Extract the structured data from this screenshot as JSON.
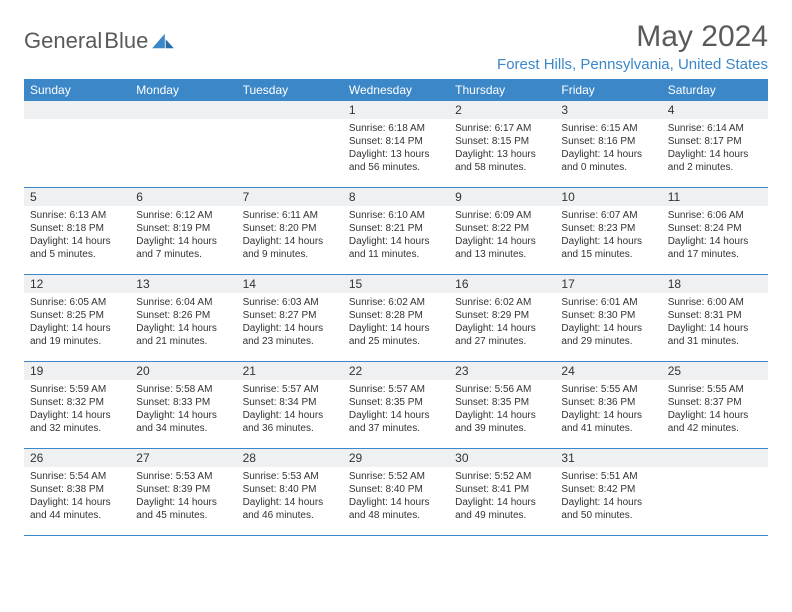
{
  "brand": {
    "part1": "General",
    "part2": "Blue"
  },
  "title": "May 2024",
  "location": "Forest Hills, Pennsylvania, United States",
  "colors": {
    "header_bg": "#3b87c8",
    "header_text": "#ffffff",
    "daynum_bg": "#eef0f2",
    "text": "#333333",
    "brand_gray": "#5a5a5a",
    "brand_blue": "#3b87c8",
    "page_bg": "#ffffff"
  },
  "typography": {
    "title_fontsize": 30,
    "location_fontsize": 15,
    "header_fontsize": 12,
    "daynum_fontsize": 12,
    "body_fontsize": 10
  },
  "day_names": [
    "Sunday",
    "Monday",
    "Tuesday",
    "Wednesday",
    "Thursday",
    "Friday",
    "Saturday"
  ],
  "weeks": [
    [
      {
        "empty": true
      },
      {
        "empty": true
      },
      {
        "empty": true
      },
      {
        "n": "1",
        "sr": "Sunrise: 6:18 AM",
        "ss": "Sunset: 8:14 PM",
        "dl": "Daylight: 13 hours and 56 minutes."
      },
      {
        "n": "2",
        "sr": "Sunrise: 6:17 AM",
        "ss": "Sunset: 8:15 PM",
        "dl": "Daylight: 13 hours and 58 minutes."
      },
      {
        "n": "3",
        "sr": "Sunrise: 6:15 AM",
        "ss": "Sunset: 8:16 PM",
        "dl": "Daylight: 14 hours and 0 minutes."
      },
      {
        "n": "4",
        "sr": "Sunrise: 6:14 AM",
        "ss": "Sunset: 8:17 PM",
        "dl": "Daylight: 14 hours and 2 minutes."
      }
    ],
    [
      {
        "n": "5",
        "sr": "Sunrise: 6:13 AM",
        "ss": "Sunset: 8:18 PM",
        "dl": "Daylight: 14 hours and 5 minutes."
      },
      {
        "n": "6",
        "sr": "Sunrise: 6:12 AM",
        "ss": "Sunset: 8:19 PM",
        "dl": "Daylight: 14 hours and 7 minutes."
      },
      {
        "n": "7",
        "sr": "Sunrise: 6:11 AM",
        "ss": "Sunset: 8:20 PM",
        "dl": "Daylight: 14 hours and 9 minutes."
      },
      {
        "n": "8",
        "sr": "Sunrise: 6:10 AM",
        "ss": "Sunset: 8:21 PM",
        "dl": "Daylight: 14 hours and 11 minutes."
      },
      {
        "n": "9",
        "sr": "Sunrise: 6:09 AM",
        "ss": "Sunset: 8:22 PM",
        "dl": "Daylight: 14 hours and 13 minutes."
      },
      {
        "n": "10",
        "sr": "Sunrise: 6:07 AM",
        "ss": "Sunset: 8:23 PM",
        "dl": "Daylight: 14 hours and 15 minutes."
      },
      {
        "n": "11",
        "sr": "Sunrise: 6:06 AM",
        "ss": "Sunset: 8:24 PM",
        "dl": "Daylight: 14 hours and 17 minutes."
      }
    ],
    [
      {
        "n": "12",
        "sr": "Sunrise: 6:05 AM",
        "ss": "Sunset: 8:25 PM",
        "dl": "Daylight: 14 hours and 19 minutes."
      },
      {
        "n": "13",
        "sr": "Sunrise: 6:04 AM",
        "ss": "Sunset: 8:26 PM",
        "dl": "Daylight: 14 hours and 21 minutes."
      },
      {
        "n": "14",
        "sr": "Sunrise: 6:03 AM",
        "ss": "Sunset: 8:27 PM",
        "dl": "Daylight: 14 hours and 23 minutes."
      },
      {
        "n": "15",
        "sr": "Sunrise: 6:02 AM",
        "ss": "Sunset: 8:28 PM",
        "dl": "Daylight: 14 hours and 25 minutes."
      },
      {
        "n": "16",
        "sr": "Sunrise: 6:02 AM",
        "ss": "Sunset: 8:29 PM",
        "dl": "Daylight: 14 hours and 27 minutes."
      },
      {
        "n": "17",
        "sr": "Sunrise: 6:01 AM",
        "ss": "Sunset: 8:30 PM",
        "dl": "Daylight: 14 hours and 29 minutes."
      },
      {
        "n": "18",
        "sr": "Sunrise: 6:00 AM",
        "ss": "Sunset: 8:31 PM",
        "dl": "Daylight: 14 hours and 31 minutes."
      }
    ],
    [
      {
        "n": "19",
        "sr": "Sunrise: 5:59 AM",
        "ss": "Sunset: 8:32 PM",
        "dl": "Daylight: 14 hours and 32 minutes."
      },
      {
        "n": "20",
        "sr": "Sunrise: 5:58 AM",
        "ss": "Sunset: 8:33 PM",
        "dl": "Daylight: 14 hours and 34 minutes."
      },
      {
        "n": "21",
        "sr": "Sunrise: 5:57 AM",
        "ss": "Sunset: 8:34 PM",
        "dl": "Daylight: 14 hours and 36 minutes."
      },
      {
        "n": "22",
        "sr": "Sunrise: 5:57 AM",
        "ss": "Sunset: 8:35 PM",
        "dl": "Daylight: 14 hours and 37 minutes."
      },
      {
        "n": "23",
        "sr": "Sunrise: 5:56 AM",
        "ss": "Sunset: 8:35 PM",
        "dl": "Daylight: 14 hours and 39 minutes."
      },
      {
        "n": "24",
        "sr": "Sunrise: 5:55 AM",
        "ss": "Sunset: 8:36 PM",
        "dl": "Daylight: 14 hours and 41 minutes."
      },
      {
        "n": "25",
        "sr": "Sunrise: 5:55 AM",
        "ss": "Sunset: 8:37 PM",
        "dl": "Daylight: 14 hours and 42 minutes."
      }
    ],
    [
      {
        "n": "26",
        "sr": "Sunrise: 5:54 AM",
        "ss": "Sunset: 8:38 PM",
        "dl": "Daylight: 14 hours and 44 minutes."
      },
      {
        "n": "27",
        "sr": "Sunrise: 5:53 AM",
        "ss": "Sunset: 8:39 PM",
        "dl": "Daylight: 14 hours and 45 minutes."
      },
      {
        "n": "28",
        "sr": "Sunrise: 5:53 AM",
        "ss": "Sunset: 8:40 PM",
        "dl": "Daylight: 14 hours and 46 minutes."
      },
      {
        "n": "29",
        "sr": "Sunrise: 5:52 AM",
        "ss": "Sunset: 8:40 PM",
        "dl": "Daylight: 14 hours and 48 minutes."
      },
      {
        "n": "30",
        "sr": "Sunrise: 5:52 AM",
        "ss": "Sunset: 8:41 PM",
        "dl": "Daylight: 14 hours and 49 minutes."
      },
      {
        "n": "31",
        "sr": "Sunrise: 5:51 AM",
        "ss": "Sunset: 8:42 PM",
        "dl": "Daylight: 14 hours and 50 minutes."
      },
      {
        "empty": true
      }
    ]
  ]
}
